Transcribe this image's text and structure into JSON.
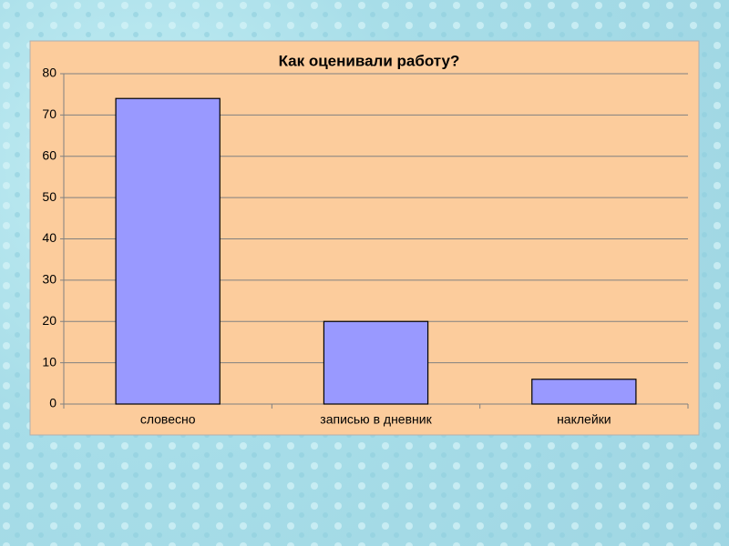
{
  "chart_data": {
    "type": "bar",
    "title": "Как оценивали работу?",
    "categories": [
      "словесно",
      "записью в дневник",
      "наклейки"
    ],
    "values": [
      74,
      20,
      6
    ],
    "color": "#9999ff",
    "ylim": [
      0,
      80
    ],
    "yticks": [
      0,
      10,
      20,
      30,
      40,
      50,
      60,
      70,
      80
    ],
    "grid": true
  }
}
